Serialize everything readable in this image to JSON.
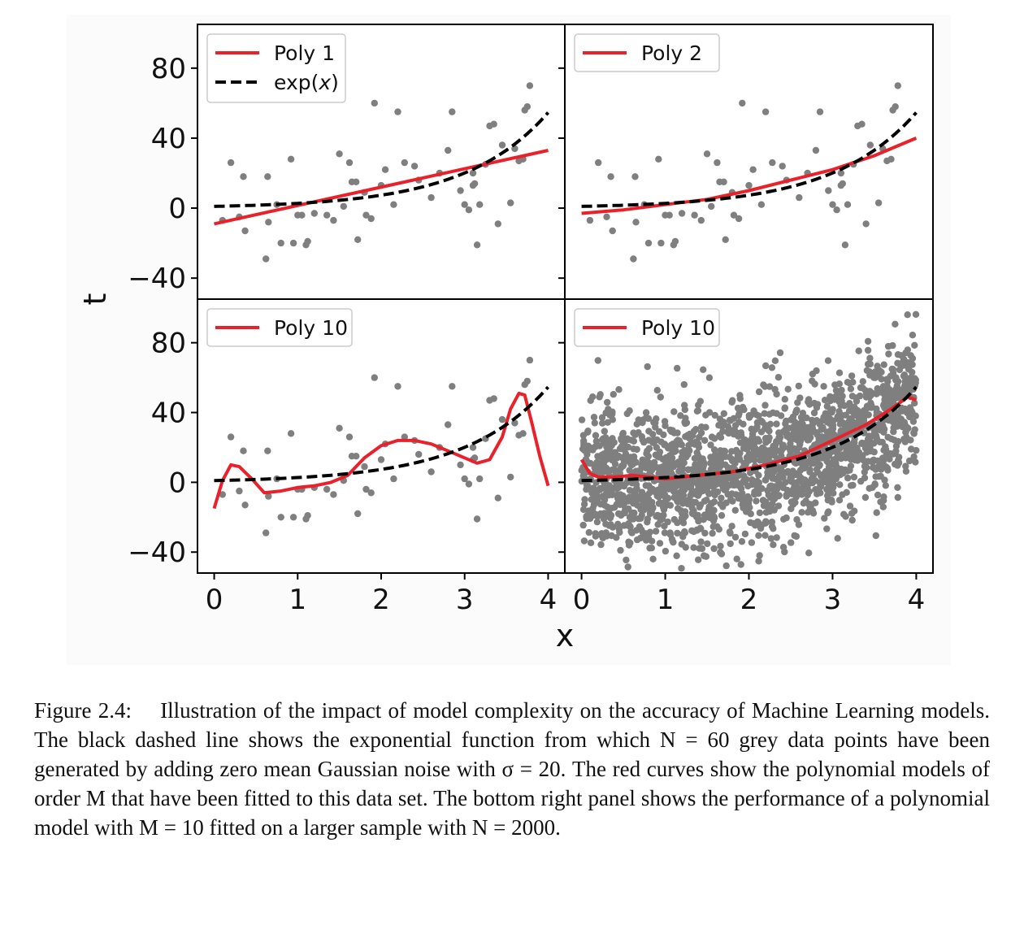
{
  "figure": {
    "xlabel": "x",
    "ylabel": "t",
    "x_ticks": [
      "0",
      "1",
      "2",
      "3",
      "4"
    ],
    "y_ticks": [
      "80",
      "40",
      "0",
      "−40"
    ],
    "colors": {
      "model": "#e8212b",
      "truth": "#000000",
      "points": "#7f7f7f",
      "axes_bg": "#ffffff",
      "figure_bg": "#fbfbfb"
    }
  },
  "caption": "Figure 2.4:  Illustration of the impact of model complexity on the accuracy of Machine Learning models. The black dashed line shows the exponential function from which N = 60 grey data points have been generated by adding zero mean Gaussian noise with σ = 20. The red curves show the polynomial models of order M that have been fitted to this data set. The bottom right panel shows the performance of a polynomial model with M = 10 fitted on a larger sample with N = 2000.",
  "chart_data": [
    {
      "type": "scatter",
      "panel": "top-left",
      "xlim": [
        -0.2,
        4.2
      ],
      "ylim": [
        -52,
        105
      ],
      "legend": {
        "position": "upper-left",
        "entries": [
          "Poly 1",
          "exp(x)"
        ]
      },
      "series": [
        {
          "name": "Poly 1",
          "kind": "line",
          "x": [
            0,
            4
          ],
          "y": [
            -9,
            33
          ]
        },
        {
          "name": "exp(x)",
          "kind": "dashed-line",
          "function": "exp",
          "x_range": [
            0,
            4
          ]
        }
      ],
      "points": [
        [
          0.1,
          -7
        ],
        [
          0.2,
          26
        ],
        [
          0.3,
          -5
        ],
        [
          0.35,
          18
        ],
        [
          0.37,
          -13
        ],
        [
          0.62,
          -29
        ],
        [
          0.64,
          18
        ],
        [
          0.65,
          -8
        ],
        [
          0.75,
          2
        ],
        [
          0.8,
          -20
        ],
        [
          0.92,
          28
        ],
        [
          0.95,
          -20
        ],
        [
          1.05,
          -4
        ],
        [
          1.1,
          -21
        ],
        [
          1.12,
          -19
        ],
        [
          1.2,
          -3
        ],
        [
          1.35,
          -4
        ],
        [
          1.43,
          -7
        ],
        [
          1.5,
          31
        ],
        [
          1.55,
          1
        ],
        [
          1.62,
          26
        ],
        [
          1.65,
          15
        ],
        [
          1.7,
          15
        ],
        [
          1.72,
          -18
        ],
        [
          1.8,
          9
        ],
        [
          1.82,
          -4
        ],
        [
          1.88,
          -6
        ],
        [
          1.92,
          60
        ],
        [
          2.0,
          13
        ],
        [
          2.05,
          22
        ],
        [
          2.15,
          2
        ],
        [
          2.2,
          55
        ],
        [
          2.28,
          26
        ],
        [
          2.4,
          24
        ],
        [
          2.45,
          16
        ],
        [
          2.6,
          6
        ],
        [
          2.7,
          20
        ],
        [
          2.8,
          33
        ],
        [
          2.85,
          55
        ],
        [
          2.95,
          10
        ],
        [
          3.0,
          2
        ],
        [
          3.05,
          -1
        ],
        [
          3.1,
          13
        ],
        [
          3.12,
          14
        ],
        [
          3.15,
          -21
        ],
        [
          3.18,
          2
        ],
        [
          3.25,
          25
        ],
        [
          3.3,
          47
        ],
        [
          3.35,
          48
        ],
        [
          3.4,
          -9
        ],
        [
          3.45,
          36
        ],
        [
          3.55,
          3
        ],
        [
          3.65,
          27
        ],
        [
          3.6,
          34
        ],
        [
          3.7,
          28
        ],
        [
          3.72,
          56
        ],
        [
          3.75,
          58
        ],
        [
          3.78,
          70
        ],
        [
          3.1,
          20
        ],
        [
          1.0,
          -4
        ]
      ]
    },
    {
      "type": "scatter",
      "panel": "top-right",
      "xlim": [
        -0.2,
        4.2
      ],
      "ylim": [
        -52,
        105
      ],
      "legend": {
        "position": "upper-left",
        "entries": [
          "Poly 2"
        ]
      },
      "series": [
        {
          "name": "Poly 2",
          "kind": "line",
          "x": [
            0,
            0.5,
            1,
            1.5,
            2,
            2.5,
            3,
            3.5,
            4
          ],
          "y": [
            -3,
            -1,
            2,
            5,
            10,
            16,
            22,
            30,
            40
          ]
        },
        {
          "kind": "dashed-line",
          "function": "exp",
          "x_range": [
            0,
            4
          ]
        }
      ],
      "points": "same as top-left"
    },
    {
      "type": "scatter",
      "panel": "bottom-left",
      "xlim": [
        -0.2,
        4.2
      ],
      "ylim": [
        -52,
        105
      ],
      "legend": {
        "position": "upper-left",
        "entries": [
          "Poly 10"
        ]
      },
      "series": [
        {
          "name": "Poly 10",
          "kind": "line",
          "x": [
            0,
            0.1,
            0.2,
            0.3,
            0.45,
            0.6,
            0.8,
            1.0,
            1.2,
            1.4,
            1.6,
            1.8,
            2.0,
            2.2,
            2.4,
            2.6,
            2.8,
            3.0,
            3.15,
            3.3,
            3.45,
            3.55,
            3.65,
            3.72,
            3.8,
            3.9,
            4.0
          ],
          "y": [
            -15,
            1,
            10,
            9,
            2,
            -6,
            -5,
            -3,
            -2,
            0,
            4,
            14,
            21,
            24,
            24,
            22,
            18,
            14,
            11,
            13,
            26,
            42,
            51,
            50,
            35,
            15,
            -2
          ]
        },
        {
          "kind": "dashed-line",
          "function": "exp",
          "x_range": [
            0,
            4
          ]
        }
      ],
      "points": "same as top-left"
    },
    {
      "type": "scatter",
      "panel": "bottom-right",
      "xlim": [
        -0.2,
        4.2
      ],
      "ylim": [
        -52,
        105
      ],
      "legend": {
        "position": "upper-left",
        "entries": [
          "Poly 10"
        ]
      },
      "series": [
        {
          "name": "Poly 10",
          "kind": "line",
          "x": [
            0,
            0.1,
            0.2,
            0.4,
            0.6,
            0.8,
            1.0,
            1.4,
            1.8,
            2.2,
            2.6,
            3.0,
            3.4,
            3.7,
            3.9,
            4.0
          ],
          "y": [
            13,
            5,
            3,
            3,
            4,
            3,
            2,
            4,
            6,
            10,
            15,
            24,
            33,
            42,
            49,
            47
          ]
        },
        {
          "kind": "dashed-line",
          "function": "exp",
          "x_range": [
            0,
            4
          ]
        }
      ],
      "points": {
        "count": 2000,
        "generator": "t = exp(x) + Gaussian noise, sigma = 20, x uniform in [0, 4]"
      }
    }
  ]
}
